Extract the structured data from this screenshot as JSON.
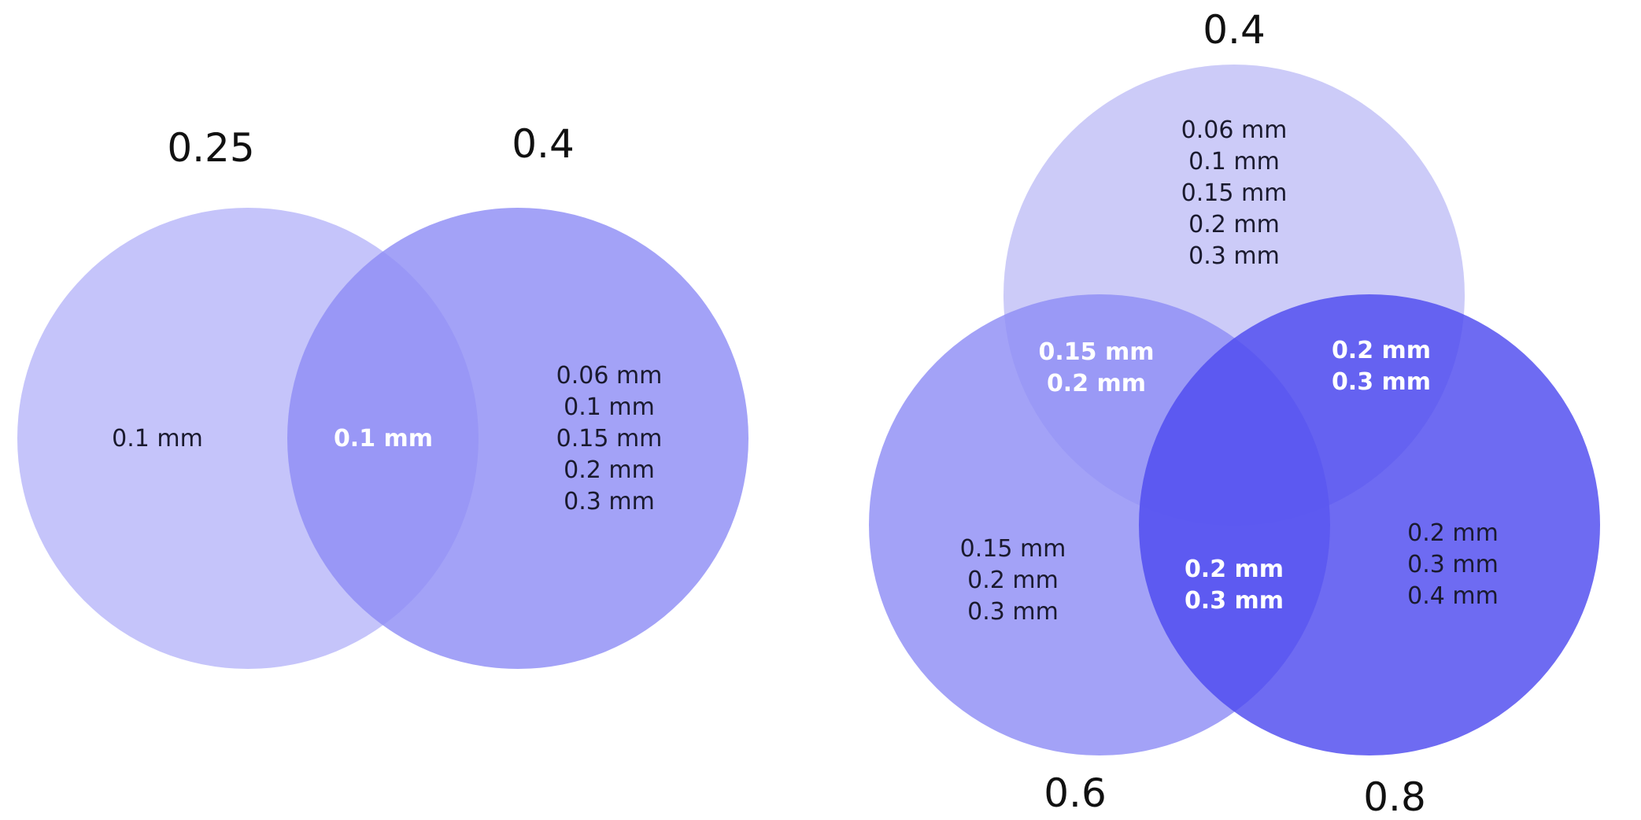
{
  "diagrams": {
    "two_set": {
      "sets": [
        {
          "name": "0.25",
          "color": "#8F8DF5",
          "opacity": 0.52
        },
        {
          "name": "0.4",
          "color": "#8F8DF5",
          "opacity": 0.82
        }
      ],
      "regions": {
        "only_a": [
          "0.1 mm"
        ],
        "a_and_b": [
          "0.1 mm"
        ],
        "only_b": [
          "0.06 mm",
          "0.1 mm",
          "0.15 mm",
          "0.2 mm",
          "0.3 mm"
        ]
      }
    },
    "three_set": {
      "sets": [
        {
          "name": "0.4",
          "color": "#B9B7F5",
          "opacity": 0.72
        },
        {
          "name": "0.6",
          "color": "#8F8DF5",
          "opacity": 0.82
        },
        {
          "name": "0.8",
          "color": "#4E4BEF",
          "opacity": 0.82
        }
      ],
      "regions": {
        "only_top": [
          "0.06 mm",
          "0.1 mm",
          "0.15 mm",
          "0.2 mm",
          "0.3 mm"
        ],
        "top_and_left": [
          "0.15 mm",
          "0.2 mm"
        ],
        "top_and_right": [
          "0.2 mm",
          "0.3 mm"
        ],
        "left_and_right": [
          "0.2 mm",
          "0.3 mm"
        ],
        "only_left": [
          "0.15 mm",
          "0.2 mm",
          "0.3 mm"
        ],
        "only_right": [
          "0.2 mm",
          "0.3 mm",
          "0.4 mm"
        ]
      }
    }
  }
}
